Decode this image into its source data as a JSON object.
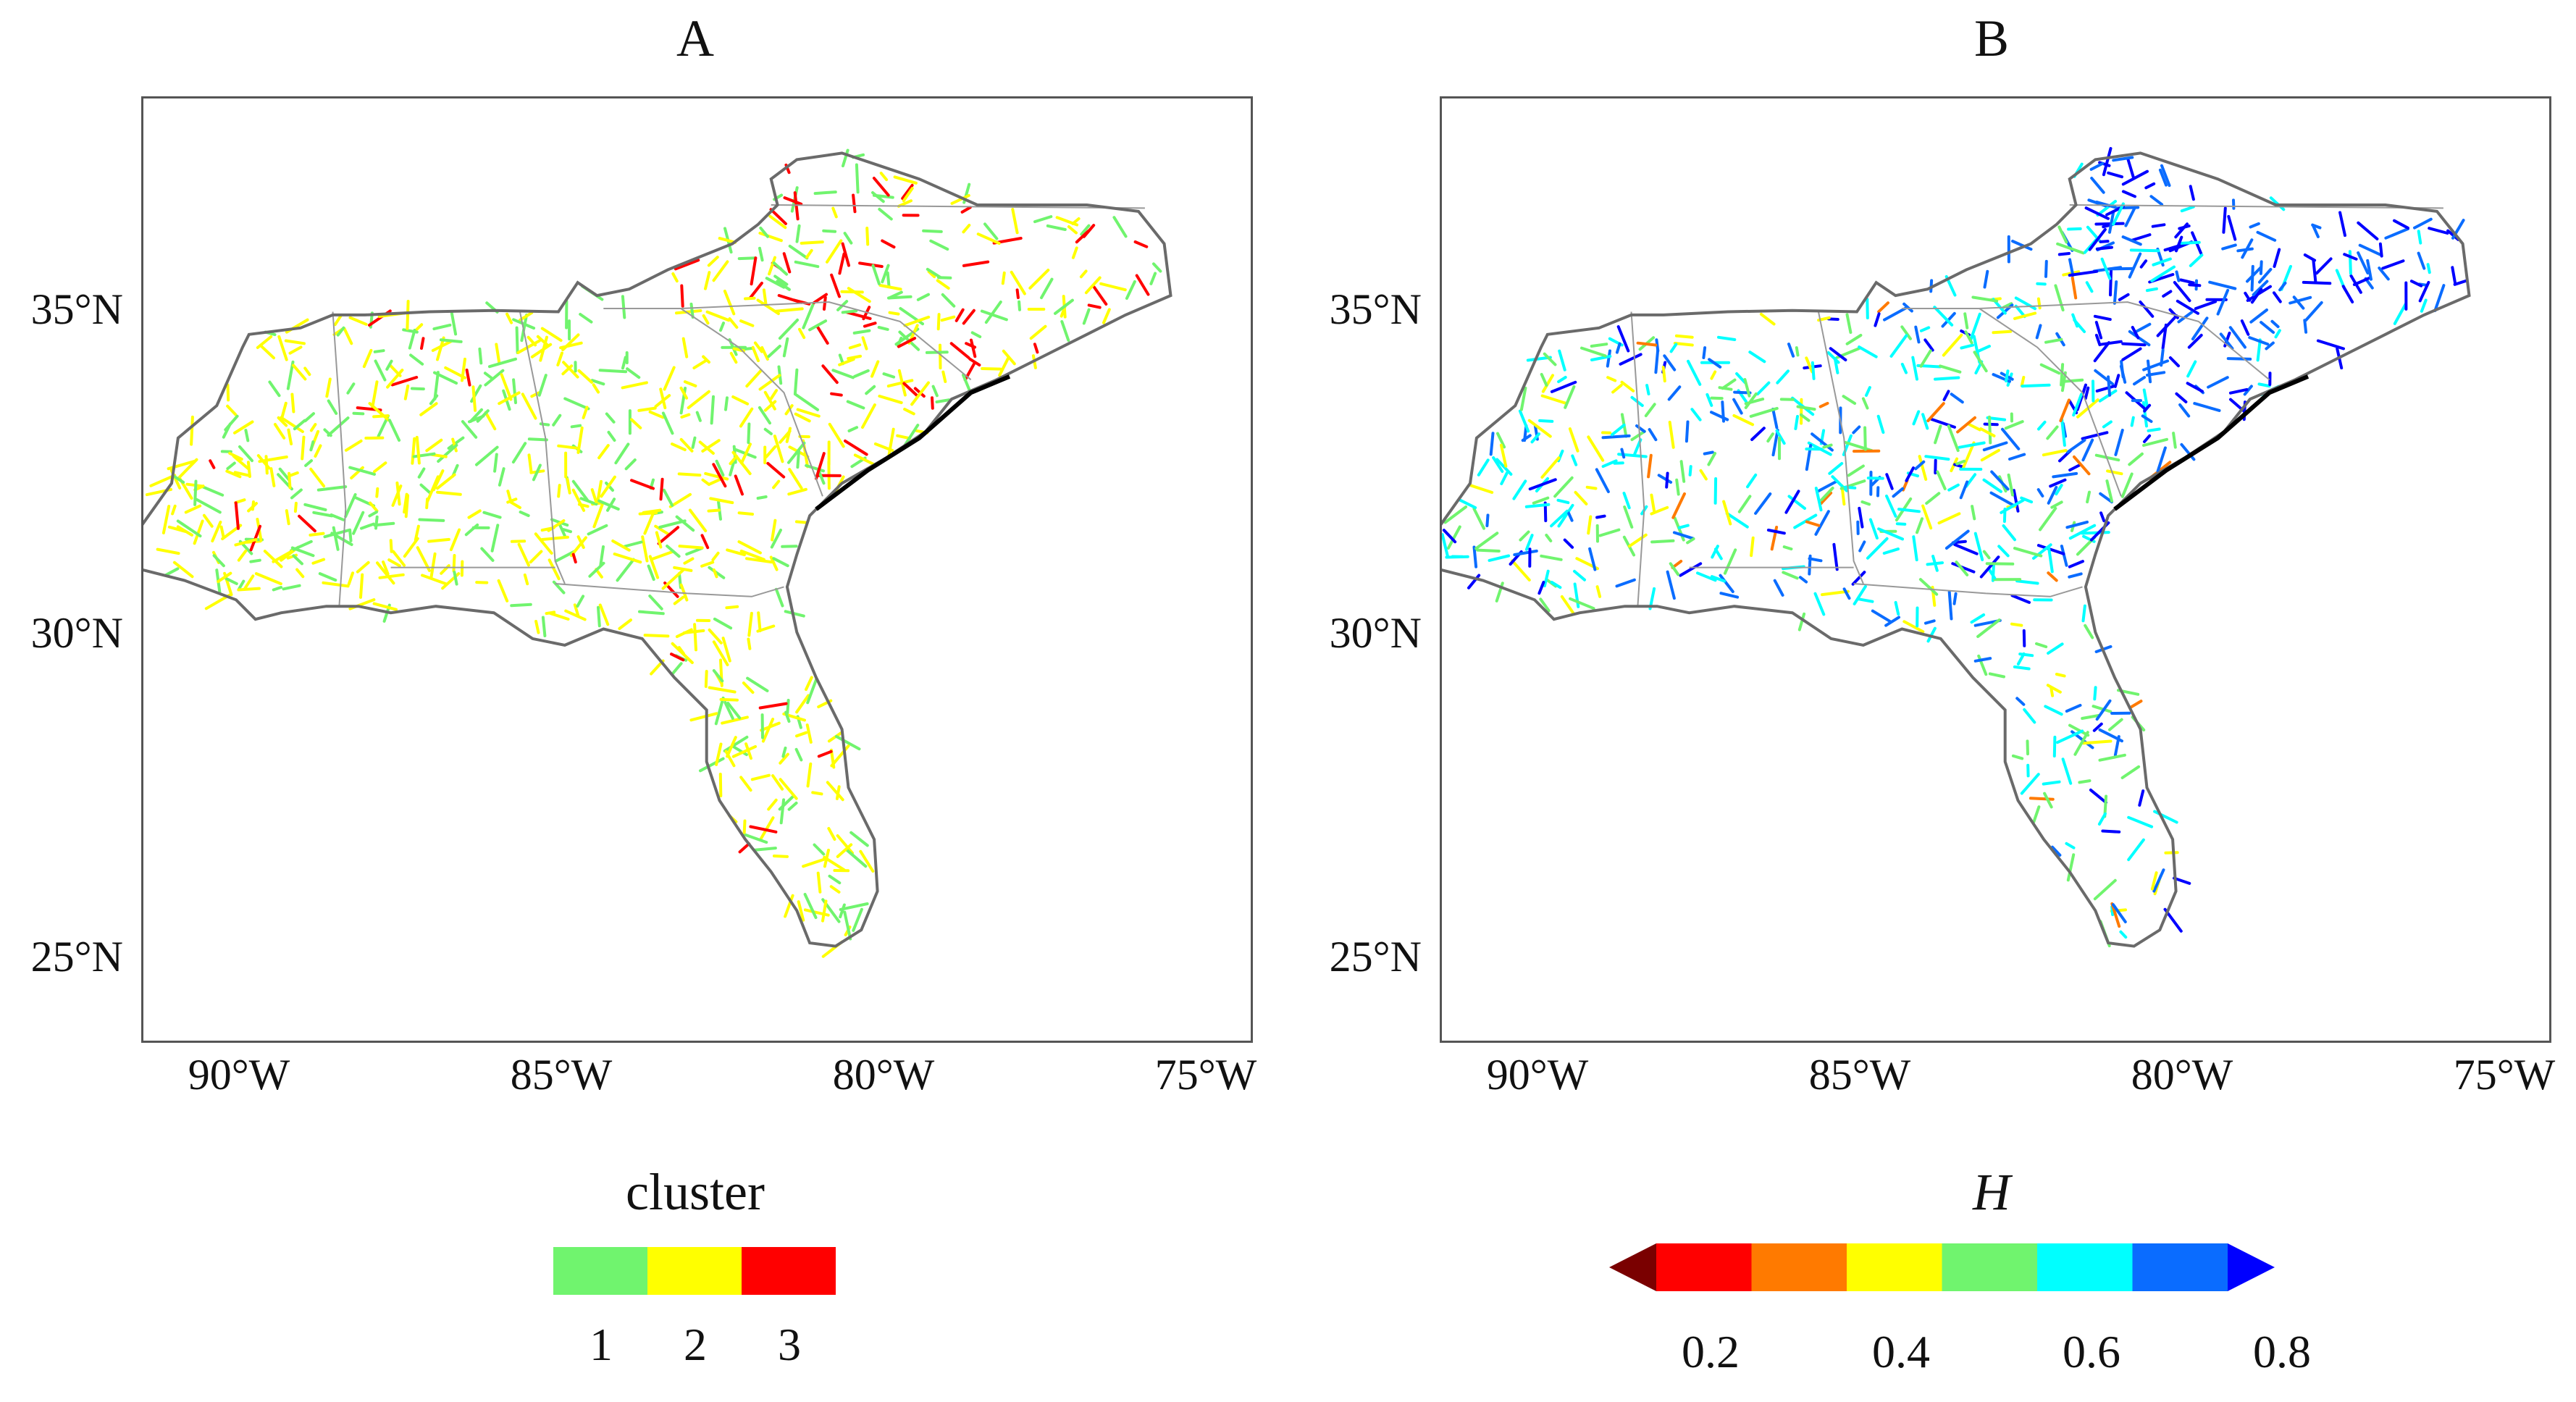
{
  "panels": [
    {
      "title": "A"
    },
    {
      "title": "B"
    }
  ],
  "axes": {
    "lat_ticks": [
      "35°N",
      "30°N",
      "25°N"
    ],
    "lon_ticks": [
      "90°W",
      "85°W",
      "80°W",
      "75°W"
    ]
  },
  "legend_a": {
    "title": "cluster",
    "labels": [
      "1",
      "2",
      "3"
    ],
    "colors": [
      "#70f46e",
      "#ffff00",
      "#ff0000"
    ]
  },
  "legend_b": {
    "title": "H",
    "labels": [
      "0.2",
      "0.4",
      "0.6",
      "0.8"
    ],
    "colors": [
      "#7a0000",
      "#ff0000",
      "#ff7a00",
      "#ffff00",
      "#70f46e",
      "#00ffff",
      "#0a6cff",
      "#0000ff"
    ]
  },
  "map_colors": {
    "outline": "#6a6a6a",
    "coast_dark": "#000000"
  }
}
